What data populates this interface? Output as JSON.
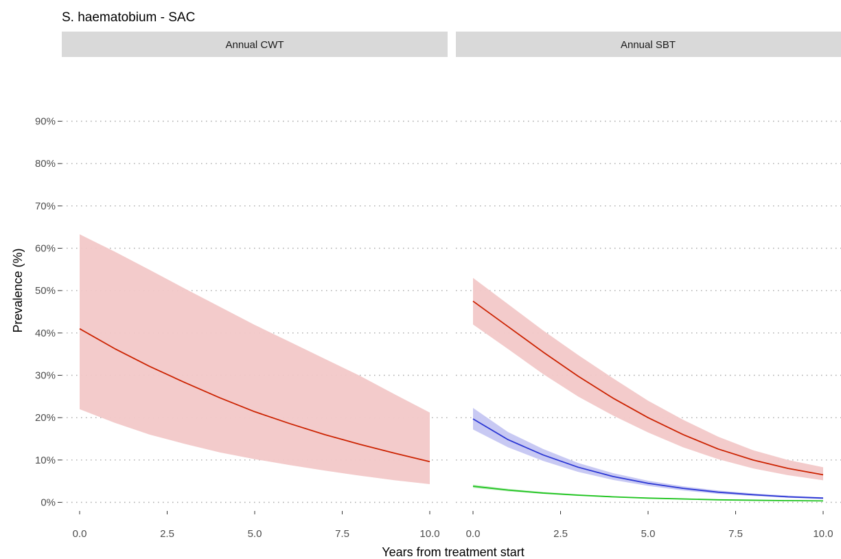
{
  "chart_data": {
    "type": "line",
    "title": "S. haematobium - SAC",
    "xlabel": "Years from treatment start",
    "ylabel": "Prevalence (%)",
    "ylim": [
      0,
      90
    ],
    "xlim": [
      0,
      10
    ],
    "y_ticks": [
      "0%",
      "10%",
      "20%",
      "30%",
      "40%",
      "50%",
      "60%",
      "70%",
      "80%",
      "90%"
    ],
    "x_ticks": [
      "0.0",
      "2.5",
      "5.0",
      "7.5",
      "10.0"
    ],
    "grid": "dotted horizontal",
    "panels": [
      {
        "strip": "Annual CWT",
        "series": [
          {
            "color": "#cc2200",
            "fill": "#f2c8c8",
            "x": [
              0,
              1,
              2,
              3,
              4,
              5,
              6,
              7,
              8,
              9,
              10
            ],
            "values": [
              41,
              36.3,
              32.1,
              28.3,
              24.7,
              21.4,
              18.6,
              16.0,
              13.7,
              11.6,
              9.6
            ],
            "lower": [
              22,
              18.8,
              16.0,
              13.8,
              11.8,
              10.2,
              8.8,
              7.5,
              6.3,
              5.2,
              4.3
            ],
            "upper": [
              63.3,
              59.2,
              54.9,
              50.5,
              46.2,
              41.9,
              37.9,
              33.9,
              29.9,
              25.5,
              21.2
            ]
          }
        ]
      },
      {
        "strip": "Annual SBT",
        "series": [
          {
            "color": "#cc2200",
            "fill": "#f2c8c8",
            "x": [
              0,
              1,
              2,
              3,
              4,
              5,
              6,
              7,
              8,
              9,
              10
            ],
            "values": [
              47.5,
              41.5,
              35.5,
              29.8,
              24.6,
              20.0,
              16.0,
              12.6,
              10.0,
              8.0,
              6.5
            ],
            "lower": [
              42,
              36.2,
              30.3,
              25.0,
              20.5,
              16.5,
              13.0,
              10.2,
              8.0,
              6.4,
              5.2
            ],
            "upper": [
              53,
              46.8,
              40.6,
              34.8,
              29.3,
              24.0,
              19.5,
              15.5,
              12.3,
              10.0,
              8.3
            ]
          },
          {
            "color": "#2a36d4",
            "fill": "#c5c6f2",
            "x": [
              0,
              1,
              2,
              3,
              4,
              5,
              6,
              7,
              8,
              9,
              10
            ],
            "values": [
              19.7,
              14.8,
              11.2,
              8.3,
              6.1,
              4.5,
              3.3,
              2.4,
              1.8,
              1.3,
              1.0
            ],
            "lower": [
              17.2,
              13.0,
              9.8,
              7.2,
              5.3,
              3.9,
              2.8,
              2.0,
              1.5,
              1.1,
              0.8
            ],
            "upper": [
              22.3,
              16.6,
              12.6,
              9.3,
              6.9,
              5.1,
              3.8,
              2.8,
              2.1,
              1.6,
              1.2
            ]
          },
          {
            "color": "#1fc41f",
            "fill": "#c6eec6",
            "x": [
              0,
              1,
              2,
              3,
              4,
              5,
              6,
              7,
              8,
              9,
              10
            ],
            "values": [
              3.8,
              2.9,
              2.2,
              1.7,
              1.3,
              1.0,
              0.8,
              0.6,
              0.5,
              0.4,
              0.35
            ],
            "lower": [
              3.4,
              2.6,
              2.0,
              1.5,
              1.15,
              0.9,
              0.7,
              0.55,
              0.45,
              0.35,
              0.3
            ],
            "upper": [
              4.2,
              3.2,
              2.45,
              1.9,
              1.45,
              1.1,
              0.9,
              0.7,
              0.55,
              0.45,
              0.4
            ]
          }
        ]
      }
    ]
  }
}
